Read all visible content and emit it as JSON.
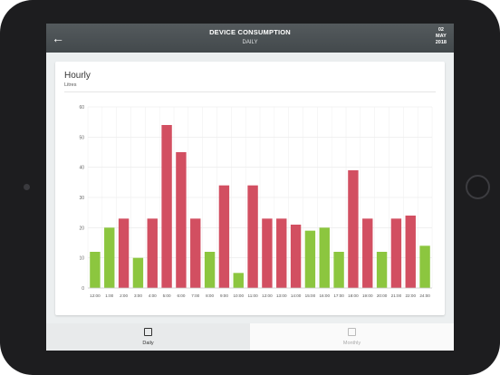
{
  "header": {
    "back_icon": "arrow-left-icon",
    "title": "DEVICE CONSUMPTION",
    "subtitle": "DAILY",
    "date_day": "02",
    "date_month": "MAY",
    "date_year": "2018"
  },
  "card": {
    "title": "Hourly",
    "subtitle": "Litres"
  },
  "colors": {
    "high": "#d24f61",
    "low": "#8cc63f",
    "appbar": "#4a5053"
  },
  "chart_data": {
    "type": "bar",
    "title": "Hourly",
    "ylabel": "Litres",
    "ylim": [
      0,
      60
    ],
    "yticks": [
      0,
      10,
      20,
      30,
      40,
      50,
      60
    ],
    "grid": true,
    "categories": [
      "12:00",
      "1:00",
      "2:00",
      "3:00",
      "4:00",
      "5:00",
      "6:00",
      "7:00",
      "8:00",
      "9:00",
      "10:00",
      "11:00",
      "12:00",
      "13:00",
      "14:00",
      "15:00",
      "16:00",
      "17:00",
      "18:00",
      "19:00",
      "20:00",
      "21:00",
      "22:00",
      "24:00"
    ],
    "values": [
      12,
      20,
      23,
      10,
      23,
      54,
      45,
      23,
      12,
      34,
      5,
      34,
      23,
      23,
      21,
      19,
      20,
      12,
      39,
      23,
      12,
      23,
      24,
      14
    ],
    "bar_colors": [
      "low",
      "low",
      "high",
      "low",
      "high",
      "high",
      "high",
      "high",
      "low",
      "high",
      "low",
      "high",
      "high",
      "high",
      "high",
      "low",
      "low",
      "low",
      "high",
      "high",
      "low",
      "high",
      "high",
      "low"
    ]
  },
  "bottom_nav": {
    "daily": {
      "label": "Daily",
      "icon": "calendar-icon"
    },
    "monthly": {
      "label": "Monthly",
      "icon": "calendar-icon"
    }
  }
}
